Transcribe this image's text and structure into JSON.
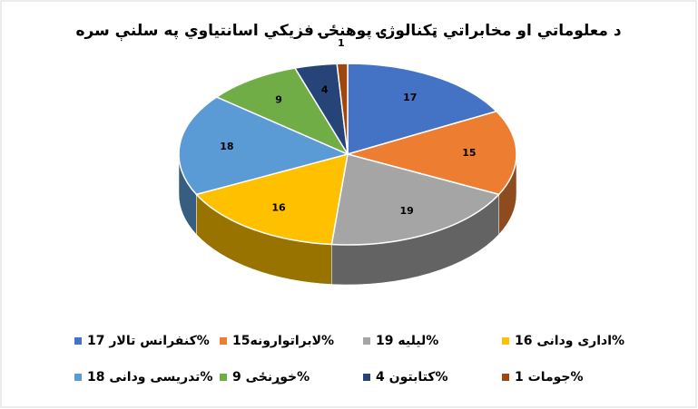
{
  "chart_data": {
    "type": "pie3d",
    "title": "د معلوماتي او مخابراتي ټکنالوژۍ پوهنځۍ فزيکي اسانتياوي په سلنې سره",
    "categories": [
      "کنفرانس تالار 17%",
      "لابراتوارونه15%",
      "ليليه 19%",
      "اداری ودانی 16%",
      "تدریسی ودانی 18%",
      "خوړنځی 9%",
      "کتابتون 4%",
      "جومات 1%"
    ],
    "values": [
      17,
      15,
      19,
      16,
      18,
      9,
      4,
      1
    ],
    "colors": [
      "#4472c4",
      "#ed7d31",
      "#a5a5a5",
      "#ffc000",
      "#5b9bd5",
      "#70ad47",
      "#264478",
      "#9e480e"
    ]
  }
}
